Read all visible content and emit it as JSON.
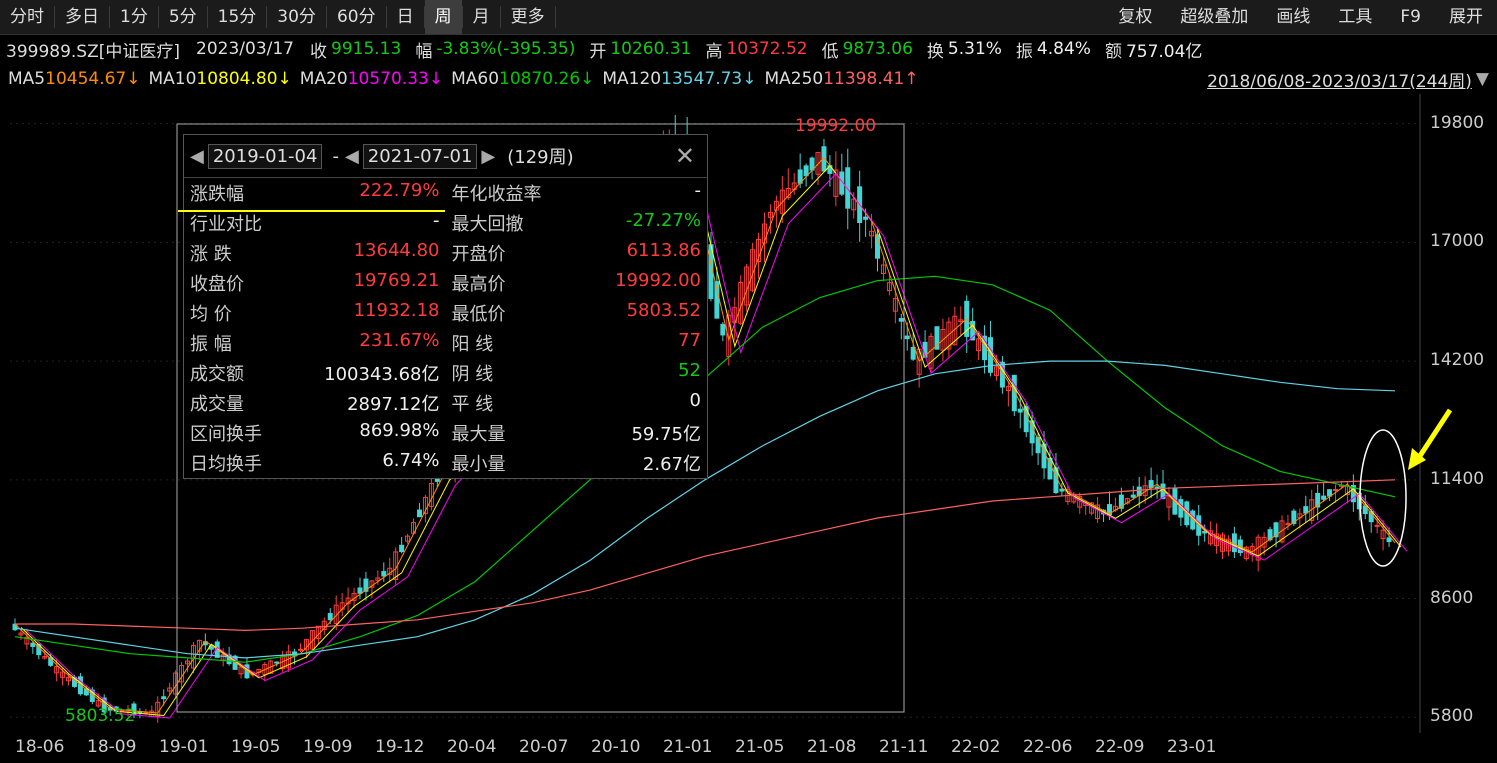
{
  "toolbar": {
    "periods": [
      "分时",
      "多日",
      "1分",
      "5分",
      "15分",
      "30分",
      "60分",
      "日",
      "周",
      "月",
      "更多"
    ],
    "active_period": "周",
    "right": [
      "复权",
      "超级叠加",
      "画线",
      "工具",
      "F9",
      "展开"
    ]
  },
  "info": {
    "code": "399989.SZ[中证医疗]",
    "date": "2023/03/17",
    "close_label": "收",
    "close": "9915.13",
    "change_label": "幅",
    "change": "-3.83%(-395.35)",
    "open_label": "开",
    "open": "10260.31",
    "high_label": "高",
    "high": "10372.52",
    "low_label": "低",
    "low": "9873.06",
    "turnover_label": "换",
    "turnover": "5.31%",
    "amplitude_label": "振",
    "amplitude": "4.84%",
    "amount_label": "额",
    "amount": "757.04亿"
  },
  "ma": {
    "ma5_label": "MA5",
    "ma5": "10454.67↓",
    "ma10_label": "MA10",
    "ma10": "10804.80↓",
    "ma20_label": "MA20",
    "ma20": "10570.33↓",
    "ma60_label": "MA60",
    "ma60": "10870.26↓",
    "ma120_label": "MA120",
    "ma120": "13547.73↓",
    "ma250_label": "MA250",
    "ma250": "11398.41↑",
    "range": "2018/06/08-2023/03/17(244周)",
    "colors": {
      "ma5": "#ff8c00",
      "ma10": "#ffff00",
      "ma20": "#ff00ff",
      "ma60": "#00c800",
      "ma120": "#5fd3e6",
      "ma250": "#ff6060"
    }
  },
  "popup": {
    "start_date": "2019-01-04",
    "dash": "-",
    "end_date": "2021-07-01",
    "weeks": "(129周)",
    "rows": [
      [
        "涨跌幅",
        "222.79%",
        "年化收益率",
        "-"
      ],
      [
        "行业对比",
        "-",
        "最大回撤",
        "-27.27%"
      ],
      [
        "涨 跌",
        "13644.80",
        "开盘价",
        "6113.86"
      ],
      [
        "收盘价",
        "19769.21",
        "最高价",
        "19992.00"
      ],
      [
        "均 价",
        "11932.18",
        "最低价",
        "5803.52"
      ],
      [
        "振 幅",
        "231.67%",
        "阳 线",
        "77"
      ],
      [
        "成交额",
        "100343.68亿",
        "阴 线",
        "52"
      ],
      [
        "成交量",
        "2897.12亿",
        "平 线",
        "0"
      ],
      [
        "区间换手",
        "869.98%",
        "最大量",
        "59.75亿"
      ],
      [
        "日均换手",
        "6.74%",
        "最小量",
        "2.67亿"
      ]
    ]
  },
  "chart_data": {
    "type": "line",
    "title": "",
    "ylim": [
      5500,
      20500
    ],
    "y_ticks": [
      "19800",
      "17000",
      "14200",
      "11400",
      "8600",
      "5800"
    ],
    "x_ticks": [
      "18-06",
      "18-09",
      "19-01",
      "19-05",
      "19-09",
      "19-12",
      "20-04",
      "20-07",
      "20-10",
      "21-01",
      "21-05",
      "21-08",
      "21-11",
      "22-02",
      "22-06",
      "22-09",
      "23-01"
    ],
    "annotations": {
      "high": "19992.00",
      "low": "5803.52"
    },
    "price_points": [
      [
        "2018-06",
        8000
      ],
      [
        "2018-09",
        6900
      ],
      [
        "2018-12",
        6000
      ],
      [
        "2019-01",
        5900
      ],
      [
        "2019-03",
        7600
      ],
      [
        "2019-05",
        6800
      ],
      [
        "2019-07",
        7300
      ],
      [
        "2019-09",
        8500
      ],
      [
        "2019-12",
        9300
      ],
      [
        "2020-02",
        11500
      ],
      [
        "2020-04",
        12700
      ],
      [
        "2020-07",
        14900
      ],
      [
        "2020-09",
        14300
      ],
      [
        "2020-12",
        17500
      ],
      [
        "2021-01",
        19500
      ],
      [
        "2021-03",
        14700
      ],
      [
        "2021-05",
        17800
      ],
      [
        "2021-06",
        19000
      ],
      [
        "2021-07",
        17500
      ],
      [
        "2021-08",
        14200
      ],
      [
        "2021-10",
        15200
      ],
      [
        "2021-12",
        13500
      ],
      [
        "2022-02",
        11200
      ],
      [
        "2022-04",
        10600
      ],
      [
        "2022-06",
        11300
      ],
      [
        "2022-08",
        10200
      ],
      [
        "2022-10",
        9700
      ],
      [
        "2022-12",
        10500
      ],
      [
        "2023-01",
        11300
      ],
      [
        "2023-03",
        9915
      ]
    ],
    "series": [
      {
        "name": "MA60",
        "values": [
          7700,
          7500,
          7300,
          7200,
          7100,
          7300,
          7700,
          8200,
          9000,
          10200,
          11400,
          12700,
          13800,
          15000,
          15700,
          16100,
          16200,
          16000,
          15400,
          14200,
          13100,
          12200,
          11600,
          11300,
          11000
        ]
      },
      {
        "name": "MA120",
        "values": [
          7900,
          7700,
          7500,
          7300,
          7200,
          7300,
          7500,
          7700,
          8100,
          8700,
          9500,
          10500,
          11400,
          12200,
          12900,
          13500,
          13900,
          14100,
          14200,
          14200,
          14100,
          13900,
          13700,
          13550,
          13500
        ]
      },
      {
        "name": "MA250",
        "values": [
          8000,
          8000,
          7950,
          7900,
          7850,
          7900,
          8000,
          8100,
          8300,
          8500,
          8800,
          9200,
          9600,
          9900,
          10200,
          10500,
          10700,
          10900,
          11000,
          11100,
          11200,
          11250,
          11300,
          11350,
          11400
        ]
      }
    ]
  }
}
